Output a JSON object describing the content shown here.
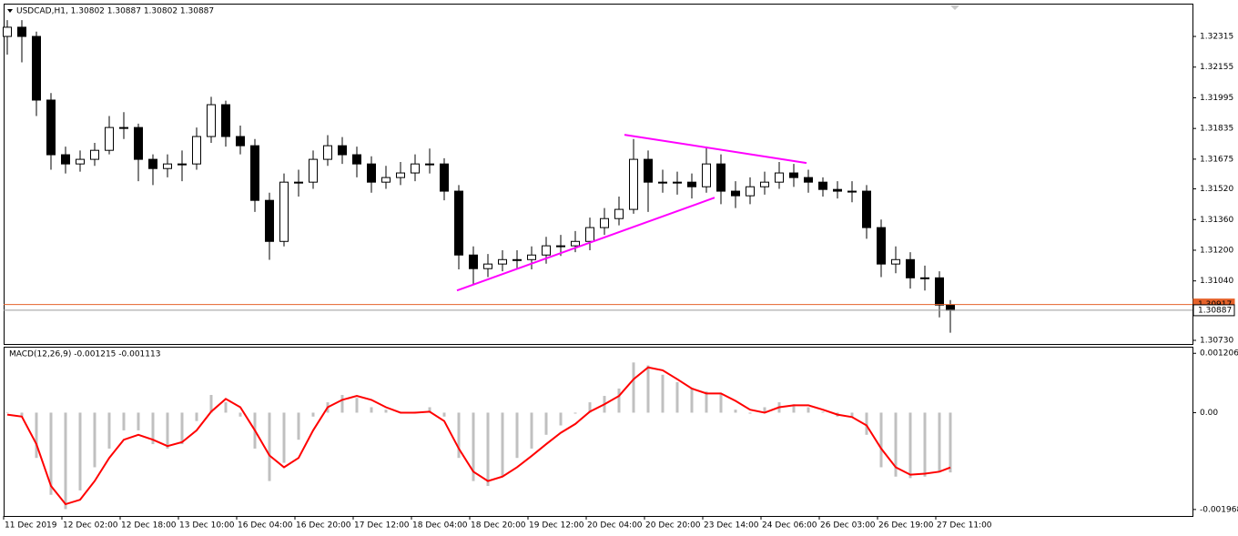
{
  "chart_data": [
    {
      "type": "candlestick",
      "title": "USDCAD,H1, 1.30802 1.30887 1.30802 1.30887",
      "x": [
        1,
        5,
        9,
        13,
        17,
        21,
        25,
        29,
        33,
        37,
        41,
        45,
        49,
        53,
        57,
        61,
        65,
        69,
        73,
        77,
        81,
        85,
        89,
        93,
        97,
        101,
        105,
        109,
        113,
        117,
        121,
        125,
        129,
        133,
        137,
        141,
        145,
        149,
        153,
        157,
        161,
        165,
        169,
        173,
        177,
        181,
        185,
        189,
        193,
        197,
        201,
        205,
        209,
        213,
        217,
        221,
        225,
        229,
        233,
        237,
        241,
        245,
        249,
        253,
        257,
        260
      ],
      "open": [
        1.32315,
        1.32363,
        1.32315,
        1.31983,
        1.31698,
        1.3165,
        1.31674,
        1.31721,
        1.3184,
        1.3184,
        1.31674,
        1.31626,
        1.3165,
        1.3165,
        1.31793,
        1.31959,
        1.31793,
        1.31745,
        1.3146,
        1.31246,
        1.31555,
        1.31555,
        1.31674,
        1.31745,
        1.31698,
        1.3165,
        1.31555,
        1.31579,
        1.31603,
        1.3165,
        1.3165,
        1.31508,
        1.31175,
        1.31104,
        1.31128,
        1.31151,
        1.31151,
        1.31175,
        1.31223,
        1.31223,
        1.31246,
        1.31318,
        1.31365,
        1.31413,
        1.31674,
        1.31555,
        1.31555,
        1.31555,
        1.31531,
        1.3165,
        1.31508,
        1.31484,
        1.31531,
        1.31555,
        1.31603,
        1.31579,
        1.31555,
        1.31517,
        1.31508,
        1.31508,
        1.31318,
        1.31128,
        1.31151,
        1.31056,
        1.31056,
        1.30914
      ],
      "high": [
        1.324,
        1.324,
        1.3234,
        1.3202,
        1.3174,
        1.3172,
        1.3176,
        1.319,
        1.3192,
        1.3186,
        1.317,
        1.317,
        1.3172,
        1.3184,
        1.32,
        1.3198,
        1.3185,
        1.3178,
        1.315,
        1.316,
        1.3162,
        1.3172,
        1.318,
        1.3179,
        1.3174,
        1.3169,
        1.3164,
        1.3166,
        1.317,
        1.3173,
        1.3168,
        1.3154,
        1.3122,
        1.3118,
        1.312,
        1.312,
        1.3122,
        1.3127,
        1.3128,
        1.313,
        1.3137,
        1.3142,
        1.3148,
        1.3178,
        1.3172,
        1.3162,
        1.3161,
        1.316,
        1.3174,
        1.317,
        1.3156,
        1.3158,
        1.3161,
        1.3166,
        1.3165,
        1.3162,
        1.3158,
        1.3156,
        1.3156,
        1.3154,
        1.3136,
        1.3122,
        1.3119,
        1.3112,
        1.3109,
        1.3094
      ],
      "low": [
        1.3222,
        1.3218,
        1.319,
        1.3162,
        1.316,
        1.3161,
        1.3164,
        1.317,
        1.3178,
        1.3156,
        1.3154,
        1.3158,
        1.3156,
        1.3162,
        1.3176,
        1.3174,
        1.317,
        1.314,
        1.3115,
        1.3122,
        1.3148,
        1.3152,
        1.3164,
        1.3165,
        1.3158,
        1.315,
        1.3152,
        1.3154,
        1.3156,
        1.316,
        1.3146,
        1.311,
        1.3102,
        1.3106,
        1.3109,
        1.311,
        1.311,
        1.3113,
        1.3117,
        1.3119,
        1.312,
        1.3128,
        1.3133,
        1.3139,
        1.314,
        1.315,
        1.3149,
        1.3147,
        1.315,
        1.3144,
        1.3142,
        1.3144,
        1.3149,
        1.3152,
        1.3153,
        1.315,
        1.3148,
        1.3147,
        1.3145,
        1.3126,
        1.3106,
        1.3108,
        1.31,
        1.3099,
        1.3085,
        1.3077
      ],
      "close": [
        1.32363,
        1.32315,
        1.31983,
        1.31698,
        1.3165,
        1.31674,
        1.31721,
        1.3184,
        1.3184,
        1.31674,
        1.31626,
        1.3165,
        1.3165,
        1.31793,
        1.31959,
        1.31793,
        1.31745,
        1.3146,
        1.31246,
        1.31555,
        1.31555,
        1.31674,
        1.31745,
        1.31698,
        1.3165,
        1.31555,
        1.31579,
        1.31603,
        1.3165,
        1.3165,
        1.31508,
        1.31175,
        1.31104,
        1.31128,
        1.31151,
        1.31151,
        1.31175,
        1.31223,
        1.31223,
        1.31246,
        1.31318,
        1.31365,
        1.31413,
        1.31674,
        1.31555,
        1.31555,
        1.31555,
        1.31531,
        1.3165,
        1.31508,
        1.31484,
        1.31531,
        1.31555,
        1.31603,
        1.31579,
        1.31555,
        1.31517,
        1.31508,
        1.31508,
        1.31318,
        1.31128,
        1.31151,
        1.31056,
        1.31056,
        1.30914,
        1.30887
      ],
      "up_color": "#ffffff",
      "down_color": "#000000",
      "xlim": [
        0,
        326.5
      ],
      "xticks": [
        {
          "value": 0,
          "label": "11 Dec 2019"
        },
        {
          "value": 16,
          "label": "12 Dec 02:00"
        },
        {
          "value": 32,
          "label": "12 Dec 18:00"
        },
        {
          "value": 48,
          "label": "13 Dec 10:00"
        },
        {
          "value": 64,
          "label": "16 Dec 04:00"
        },
        {
          "value": 80,
          "label": "16 Dec 20:00"
        },
        {
          "value": 96,
          "label": "17 Dec 12:00"
        },
        {
          "value": 112,
          "label": "18 Dec 04:00"
        },
        {
          "value": 128,
          "label": "18 Dec 20:00"
        },
        {
          "value": 144,
          "label": "19 Dec 12:00"
        },
        {
          "value": 160,
          "label": "20 Dec 04:00"
        },
        {
          "value": 176,
          "label": "20 Dec 20:00"
        },
        {
          "value": 192,
          "label": "23 Dec 14:00"
        },
        {
          "value": 208,
          "label": "24 Dec 06:00"
        },
        {
          "value": 224,
          "label": "26 Dec 03:00"
        },
        {
          "value": 240,
          "label": "26 Dec 19:00"
        },
        {
          "value": 256,
          "label": "27 Dec 11:00"
        }
      ],
      "ylim": [
        1.30711,
        1.32486
      ],
      "yticks": [
        1.32315,
        1.32155,
        1.31995,
        1.31835,
        1.31675,
        {
          "value": 1.3152,
          "label": "1.31520"
        },
        {
          "value": 1.3136,
          "label": "1.31360"
        },
        {
          "value": 1.312,
          "label": "1.31200"
        },
        {
          "value": 1.3104,
          "label": "1.31040"
        },
        {
          "value": 1.3073,
          "label": "1.30730"
        }
      ],
      "trendlines": [
        {
          "x": [
            124.5,
            195.25
          ],
          "y": [
            1.3099,
            1.31474
          ]
        },
        {
          "x": [
            170.5,
            220.5
          ],
          "y": [
            1.31802,
            1.31655
          ]
        }
      ],
      "trendline_color": "#ff00ff",
      "price_lines": [
        {
          "value": 1.30917,
          "color": "#e5622a"
        },
        {
          "value": 1.30887,
          "color": "#9a9a9a"
        }
      ]
    },
    {
      "type": "macd",
      "title": "MACD(12,26,9) -0.001215 -0.001113",
      "x": [
        1,
        5,
        9,
        13,
        17,
        21,
        25,
        29,
        33,
        37,
        41,
        45,
        49,
        53,
        57,
        61,
        65,
        69,
        73,
        77,
        81,
        85,
        89,
        93,
        97,
        101,
        105,
        109,
        113,
        117,
        121,
        125,
        129,
        133,
        137,
        141,
        145,
        149,
        153,
        157,
        161,
        165,
        169,
        173,
        177,
        181,
        185,
        189,
        193,
        197,
        201,
        205,
        209,
        213,
        217,
        221,
        225,
        229,
        233,
        237,
        241,
        245,
        249,
        253,
        257,
        260
      ],
      "histogram": [
        0,
        -8e-05,
        -0.00092,
        -0.00167,
        -0.00196,
        -0.00158,
        -0.00111,
        -0.00073,
        -0.00036,
        -0.00036,
        -0.00064,
        -0.00073,
        -0.00064,
        -0.00017,
        0.00036,
        0.00021,
        -8e-05,
        -0.00073,
        -0.00139,
        -0.00102,
        -0.00055,
        -8e-05,
        0.00021,
        0.00036,
        0.0003,
        0.00011,
        6e-05,
        2e-05,
        2e-05,
        0.00011,
        -8e-05,
        -0.00092,
        -0.00139,
        -0.00149,
        -0.0013,
        -0.00092,
        -0.00073,
        -0.00045,
        -0.00026,
        -2e-05,
        0.00021,
        0.00034,
        0.00049,
        0.00102,
        0.00096,
        0.00077,
        0.00062,
        0.00049,
        0.00043,
        0.00039,
        6e-05,
        -2e-05,
        0.00011,
        0.00021,
        0.00017,
        0.00011,
        2e-05,
        -8e-05,
        -8e-05,
        -0.00045,
        -0.00111,
        -0.0013,
        -0.00133,
        -0.0013,
        -0.0012,
        -0.001215
      ],
      "signal": [
        -4e-05,
        -8e-05,
        -0.00064,
        -0.00149,
        -0.00186,
        -0.00177,
        -0.00139,
        -0.00092,
        -0.00055,
        -0.00045,
        -0.00055,
        -0.00068,
        -0.0006,
        -0.00036,
        2e-05,
        0.00028,
        0.00011,
        -0.00036,
        -0.00087,
        -0.00111,
        -0.00092,
        -0.00036,
        0.00011,
        0.00026,
        0.00034,
        0.00026,
        0.00011,
        0,
        0,
        2e-05,
        -0.00017,
        -0.00073,
        -0.0012,
        -0.00139,
        -0.0013,
        -0.00111,
        -0.00088,
        -0.00064,
        -0.00041,
        -0.00023,
        2e-05,
        0.00017,
        0.00034,
        0.00068,
        0.00092,
        0.00086,
        0.00068,
        0.00049,
        0.00039,
        0.00039,
        0.00024,
        6e-05,
        0,
        0.00011,
        0.00015,
        0.00015,
        6e-05,
        -4e-05,
        -9e-05,
        -0.00026,
        -0.00073,
        -0.00111,
        -0.00126,
        -0.00124,
        -0.0012,
        -0.001113
      ],
      "histogram_color": "#c0c0c0",
      "signal_color": "#ff0000",
      "xlim": [
        0,
        326.5
      ],
      "ylim": [
        -0.0021,
        0.00134
      ],
      "yticks": [
        0.001206,
        {
          "value": 0,
          "label": "0.00"
        },
        -0.001968
      ]
    }
  ]
}
